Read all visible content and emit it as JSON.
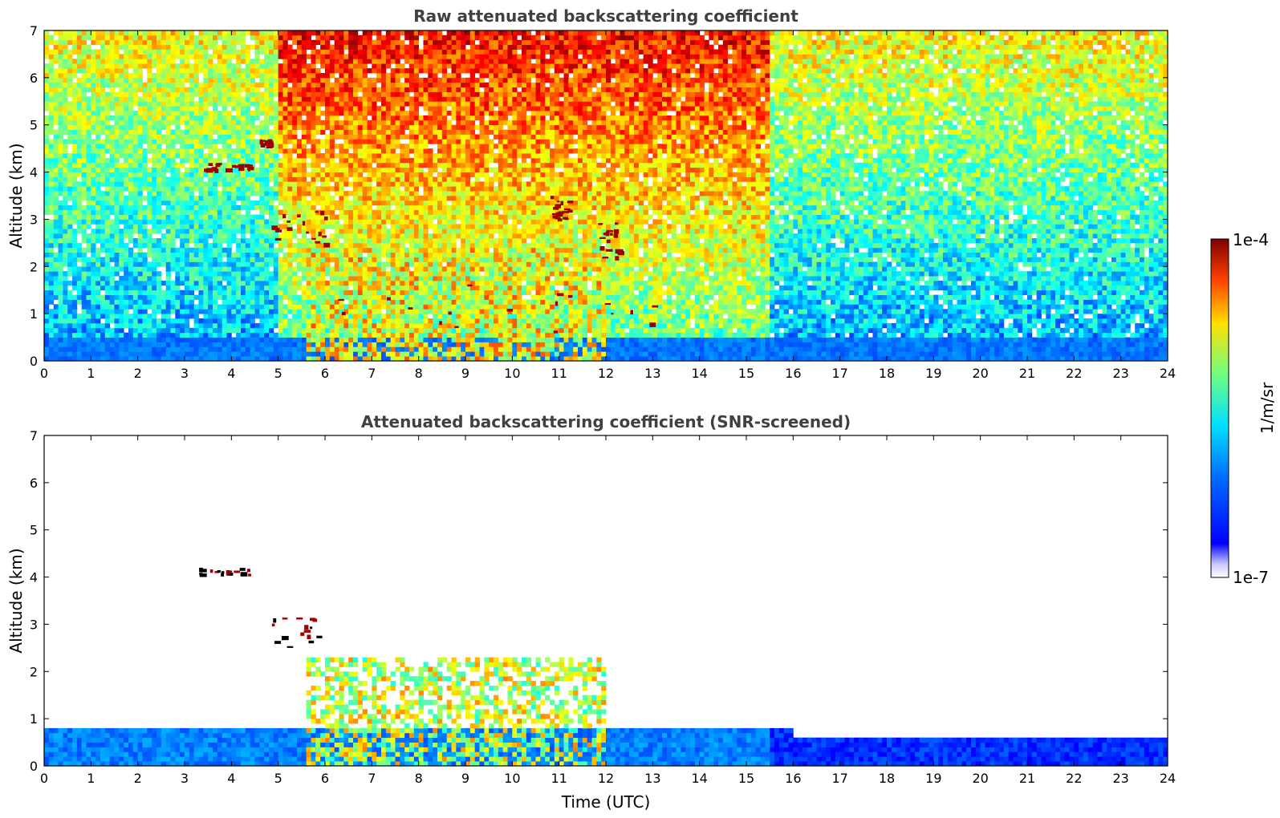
{
  "chart_data": [
    {
      "type": "heatmap",
      "title": "Raw attenuated backscattering coefficient",
      "xlabel": "",
      "ylabel": "Altitude (km)",
      "xlim": [
        0,
        24
      ],
      "ylim": [
        0,
        7
      ],
      "x_ticks": [
        "0",
        "1",
        "2",
        "3",
        "4",
        "5",
        "6",
        "7",
        "8",
        "9",
        "10",
        "11",
        "12",
        "13",
        "14",
        "15",
        "16",
        "17",
        "18",
        "19",
        "20",
        "21",
        "22",
        "23",
        "24"
      ],
      "y_ticks": [
        "0",
        "1",
        "2",
        "3",
        "4",
        "5",
        "6",
        "7"
      ],
      "features": [
        {
          "name": "boundary-layer",
          "x": [
            0,
            24
          ],
          "y": [
            0,
            0.55
          ],
          "value": "~3e-7 to 1e-6"
        },
        {
          "name": "aerosol-column",
          "x": [
            5.6,
            12.0
          ],
          "y": [
            0,
            2.5
          ],
          "value": "~1e-6 to 1e-5"
        },
        {
          "name": "noise-high-altitude",
          "x": [
            5,
            15
          ],
          "y": [
            3,
            7
          ],
          "value": "~3e-5 to 1e-4"
        },
        {
          "name": "cloud-4km",
          "x": [
            3.3,
            4.4
          ],
          "y": [
            4.05,
            4.2
          ],
          "value": "~1e-4"
        },
        {
          "name": "cloud-4.6km",
          "x": [
            4.6,
            4.8
          ],
          "y": [
            4.6,
            4.7
          ],
          "value": "~1e-4"
        },
        {
          "name": "cloud-3km-streak",
          "x": [
            4.8,
            6.0
          ],
          "y": [
            2.5,
            3.2
          ],
          "value": "~1e-4"
        },
        {
          "name": "cloud-11km-3.5",
          "x": [
            10.8,
            11.2
          ],
          "y": [
            3.0,
            3.5
          ],
          "value": "~1e-4"
        },
        {
          "name": "cloud-12km-2.7",
          "x": [
            11.8,
            12.3
          ],
          "y": [
            2.2,
            3.0
          ],
          "value": "~1e-4"
        },
        {
          "name": "cloud-base-0.6",
          "x": [
            6.0,
            13.5
          ],
          "y": [
            0.5,
            1.8
          ],
          "value": "~1e-4"
        }
      ]
    },
    {
      "type": "heatmap",
      "title": "Attenuated backscattering coefficient (SNR-screened)",
      "xlabel": "Time (UTC)",
      "ylabel": "Altitude (km)",
      "xlim": [
        0,
        24
      ],
      "ylim": [
        0,
        7
      ],
      "x_ticks": [
        "0",
        "1",
        "2",
        "3",
        "4",
        "5",
        "6",
        "7",
        "8",
        "9",
        "10",
        "11",
        "12",
        "13",
        "14",
        "15",
        "16",
        "17",
        "18",
        "19",
        "20",
        "21",
        "22",
        "23",
        "24"
      ],
      "y_ticks": [
        "0",
        "1",
        "2",
        "3",
        "4",
        "5",
        "6",
        "7"
      ],
      "features": [
        {
          "name": "boundary-layer",
          "x": [
            0,
            24
          ],
          "y": [
            0,
            0.9
          ],
          "value": "~3e-7 to 1e-6"
        },
        {
          "name": "aerosol-column",
          "x": [
            5.6,
            12.0
          ],
          "y": [
            0,
            2.5
          ],
          "value": "~1e-6 to 1e-5"
        },
        {
          "name": "cloud-4km",
          "x": [
            3.3,
            4.4
          ],
          "y": [
            4.05,
            4.2
          ],
          "value": ">1e-4"
        },
        {
          "name": "cloud-3km-streak",
          "x": [
            4.8,
            6.0
          ],
          "y": [
            2.5,
            3.2
          ],
          "value": ">1e-4"
        }
      ]
    }
  ],
  "colorbar": {
    "max_label": "1e-4",
    "min_label": "1e-7",
    "unit_label": "1/m/sr",
    "colormap": "jet"
  }
}
